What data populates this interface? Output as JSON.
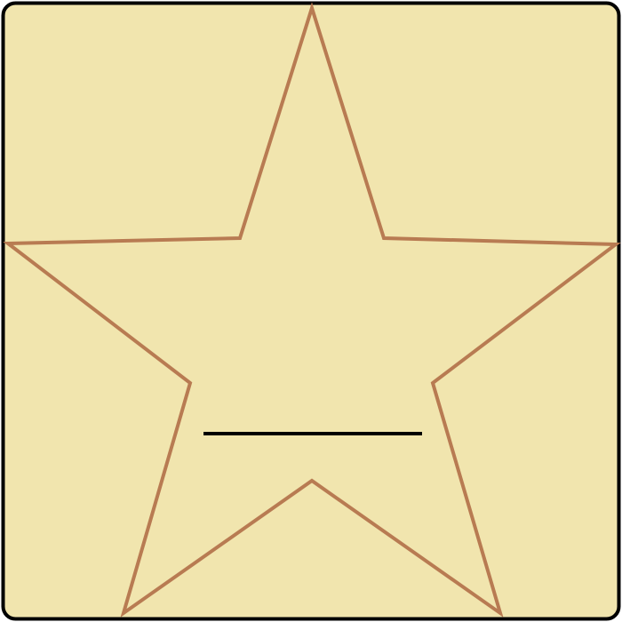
{
  "colors": {
    "panel_fill": "#F1E5AE",
    "panel_border": "#000000",
    "star_stroke": "#B87B52",
    "line_stroke": "#000000"
  },
  "icons": {
    "star": "star-icon"
  }
}
